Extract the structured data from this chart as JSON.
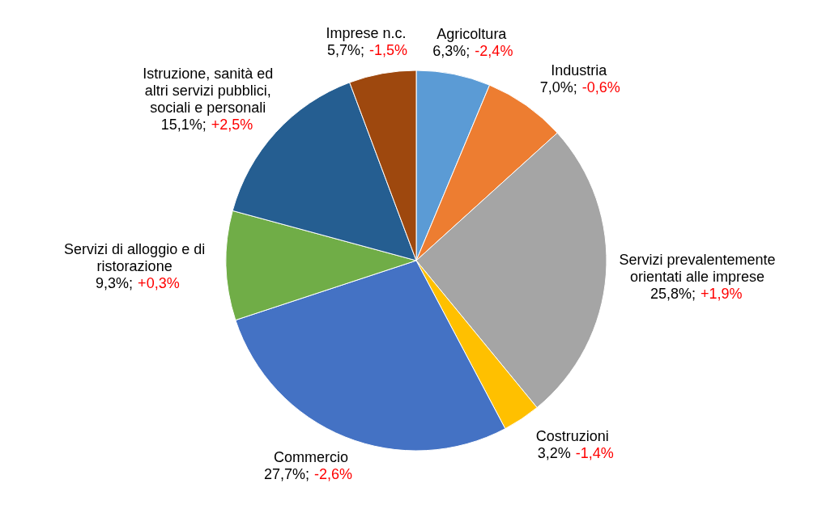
{
  "chart_data": {
    "type": "pie",
    "categories": [
      "Agricoltura",
      "Industria",
      "Servizi prevalentemente orientati alle imprese",
      "Costruzioni",
      "Commercio",
      "Servizi di alloggio e di ristorazione",
      "Istruzione, sanità ed altri servizi pubblici, sociali e personali",
      "Imprese n.c."
    ],
    "values": [
      6.3,
      7.0,
      25.8,
      3.2,
      27.7,
      9.3,
      15.1,
      5.7
    ],
    "colors": [
      "#5b9bd5",
      "#ed7d31",
      "#a5a5a5",
      "#ffc000",
      "#4472c4",
      "#70ad47",
      "#255e91",
      "#9e480e"
    ],
    "value_labels": [
      "6,3%;",
      "7,0%;",
      "25,8%;",
      "3,2%",
      "27,7%;",
      "9,3%;",
      "15,1%;",
      "5,7%;"
    ],
    "annotations": [
      "-2,4%",
      "-0,6%",
      "+1,9%",
      "-1,4%",
      "-2,6%",
      "+0,3%",
      "+2,5%",
      "-1,5%"
    ]
  }
}
